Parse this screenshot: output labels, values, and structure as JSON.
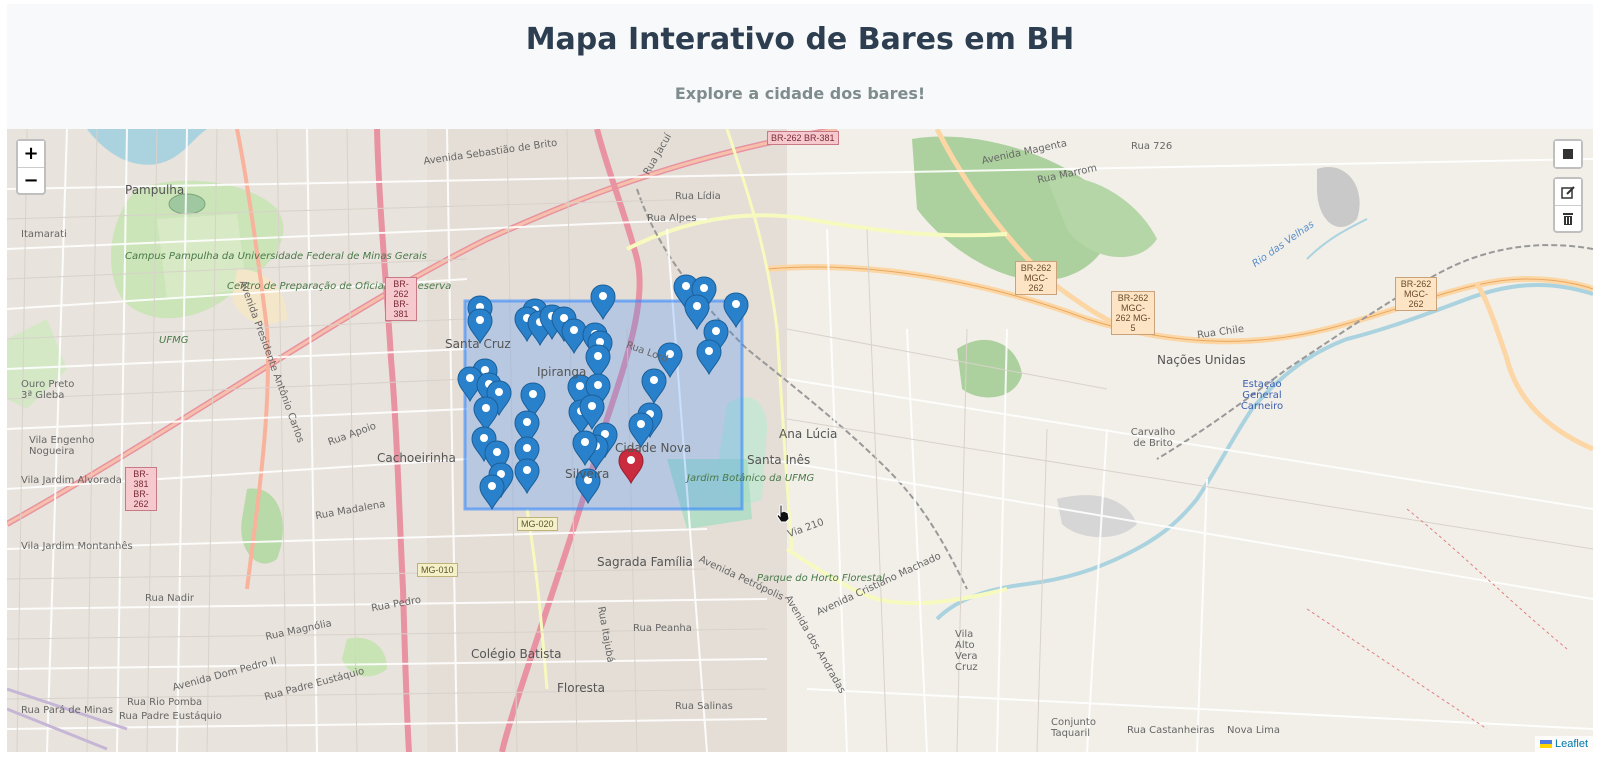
{
  "header": {
    "title": "Mapa Interativo de Bares em BH",
    "subtitle": "Explore a cidade dos bares!"
  },
  "map": {
    "zoom_in_label": "+",
    "zoom_out_label": "−",
    "attribution": "Leaflet",
    "accent_color": "#3388ff",
    "marker_color": "#2a81cb",
    "selected_marker_color": "#cb2b3e",
    "draw_controls": [
      "rectangle-icon",
      "edit-icon",
      "trash-icon"
    ],
    "places": [
      "Pampulha",
      "Itamarati",
      "Campus Pampulha da Universidade Federal de Minas Gerais",
      "UFMG",
      "Centro de Preparação de Oficiais da Reserva",
      "Ouro Preto 3ª Gleba",
      "Vila Engenho Nogueira",
      "Santa Cruz",
      "Ipiranga",
      "Cachoeirinha",
      "Vila Jardim Alvorada",
      "Vila Jardim Montanhês",
      "Ana Lúcia",
      "Santa Inês",
      "Sagrada Família",
      "Colégio Batista",
      "Floresta",
      "Nações Unidas",
      "Carvalho de Brito",
      "Estação General Carneiro",
      "Jardim Botânico da UFMG",
      "Parque do Horto Florestal",
      "Vila Alto Vera Cruz",
      "Conjunto Taquaril",
      "Cidade Nova",
      "Silveira"
    ],
    "roads": [
      "Avenida Sebastião de Brito",
      "Avenida Presidente Antônio Carlos",
      "Rua Lídia",
      "Rua Alpes",
      "Avenida Magenta",
      "Rua Marrom",
      "Rua 726",
      "Rua Chile",
      "Rua Lord",
      "Rua Apoio",
      "Rua Madalena",
      "Rua Nadir",
      "Rua Pedro",
      "Rua Magnólia",
      "Avenida Dom Pedro II",
      "Rua Padre Eustáquio",
      "Rua Rio Pomba",
      "Rua Pará de Minas",
      "Rua Padre Eustáquio",
      "Avenida Cristiano Machado",
      "Rua Peanha",
      "Rua Salinas",
      "Avenida dos Andradas",
      "Rua Castanheiras",
      "Nova Lima",
      "Avenida Petrópolis",
      "Rua Itajubá",
      "Rua Jacuí",
      "Via 210",
      "Rio das Velhas"
    ],
    "route_shields": [
      "BR-262 BR-381",
      "BR-262 BR-381",
      "BR-262 MGC-262",
      "BR-262 MGC-262 MG-5",
      "BR-262 MGC-262",
      "BR-381 BR-262",
      "MG-020",
      "MG-010"
    ]
  }
}
